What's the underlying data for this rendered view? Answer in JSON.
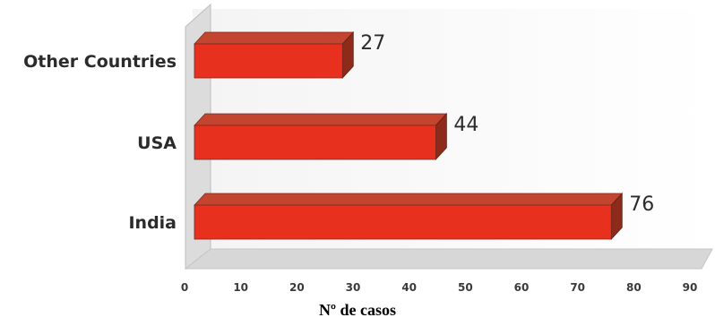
{
  "chart_data": {
    "type": "bar",
    "orientation": "horizontal",
    "categories": [
      "India",
      "USA",
      "Other Countries"
    ],
    "values": [
      76,
      44,
      27
    ],
    "value_labels": [
      "76",
      "44",
      "27"
    ],
    "xlabel": "Nº de casos",
    "ylabel": "",
    "xlim": [
      0,
      90
    ],
    "xticks": [
      "0",
      "10",
      "20",
      "30",
      "40",
      "50",
      "60",
      "70",
      "80",
      "90"
    ],
    "grid": false,
    "style": "3d",
    "colors": {
      "bar_front": "#e8301f",
      "bar_top": "#c4452f",
      "bar_side": "#8e2a1a",
      "wall": "#dcdcdc",
      "floor": "#d7d7d7"
    }
  }
}
